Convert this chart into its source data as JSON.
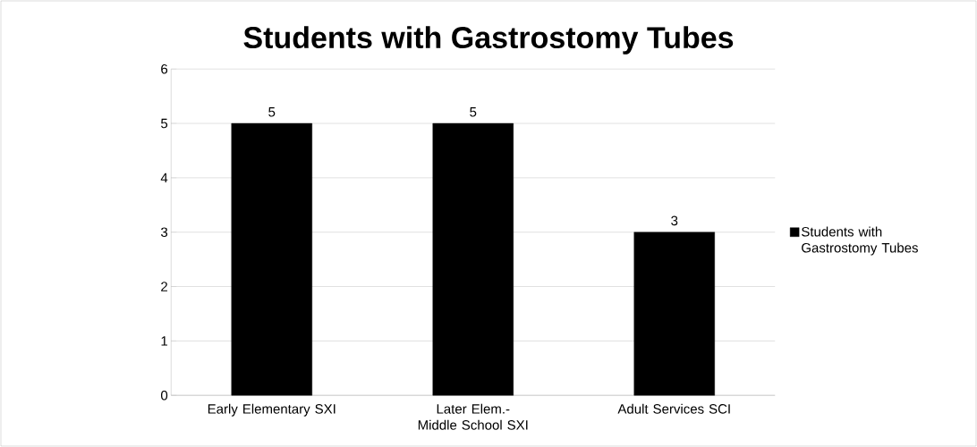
{
  "chart_data": {
    "type": "bar",
    "title": "Students with Gastrostomy Tubes",
    "categories": [
      "Early Elementary SXI",
      "Later Elem.-Middle School SXI",
      "Adult Services SCI"
    ],
    "series": [
      {
        "name": "Students with Gastrostomy Tubes",
        "color": "#000000",
        "values": [
          5,
          5,
          3
        ]
      }
    ],
    "ylim": [
      0,
      6
    ],
    "yticks": [
      0,
      1,
      2,
      3,
      4,
      5,
      6
    ],
    "grid": "y",
    "legend": "right",
    "data_labels": true
  }
}
